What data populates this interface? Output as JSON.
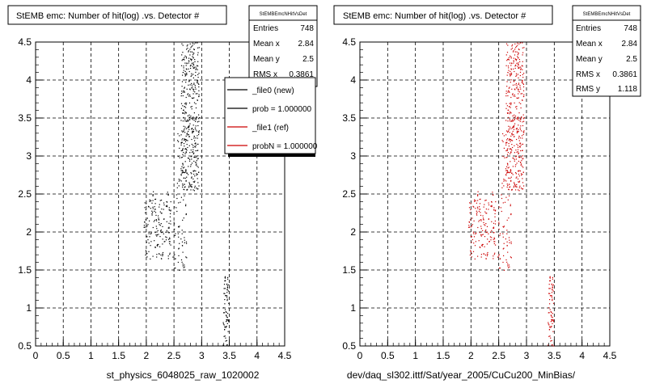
{
  "colors": {
    "background": "#ffffff",
    "frame": "#000000",
    "grid": "#000000",
    "new_series": "#000000",
    "ref_series": "#cc0000",
    "legend_shadow": "#000000"
  },
  "chart_data": [
    {
      "type": "scatter",
      "title": "StEMB emc: Number of hit(log) .vs. Detector #",
      "xlabel": "st_physics_6048025_raw_1020002",
      "xlim": [
        0,
        4.5
      ],
      "ylim": [
        0.5,
        4.5
      ],
      "x_ticks": [
        "0",
        "0.5",
        "1",
        "1.5",
        "2",
        "2.5",
        "3",
        "3.5",
        "4",
        "4.5"
      ],
      "y_ticks": [
        "0.5",
        "1",
        "1.5",
        "2",
        "2.5",
        "3",
        "3.5",
        "4",
        "4.5"
      ],
      "grid": true,
      "stats_box": {
        "title": "StEMBEmcNHitVsDet",
        "rows": [
          {
            "label": "Entries",
            "value": "748"
          },
          {
            "label": "Mean x",
            "value": "2.84"
          },
          {
            "label": "Mean y",
            "value": "2.5"
          },
          {
            "label": "RMS x",
            "value": "0.3861"
          }
        ]
      },
      "legend": {
        "placement": "top-right",
        "entries": [
          {
            "label": "_file0 (new)",
            "color": "#000000"
          },
          {
            "label": "prob = 1.000000",
            "color": "#000000"
          },
          {
            "label": "_file1 (ref)",
            "color": "#cc0000"
          },
          {
            "label": "probN = 1.000000",
            "color": "#cc0000"
          }
        ]
      },
      "series": [
        {
          "color": "#000000",
          "clusters": [
            {
              "x": [
                2.62,
                2.95
              ],
              "y": [
                2.55,
                4.5
              ],
              "n": 420
            },
            {
              "x": [
                2.55,
                2.72
              ],
              "y": [
                2.55,
                3.4
              ],
              "n": 40
            },
            {
              "x": [
                1.95,
                2.45
              ],
              "y": [
                1.65,
                2.45
              ],
              "n": 150
            },
            {
              "x": [
                2.1,
                2.42
              ],
              "y": [
                2.3,
                2.55
              ],
              "n": 20
            },
            {
              "x": [
                2.47,
                2.72
              ],
              "y": [
                1.5,
                2.5
              ],
              "n": 60
            },
            {
              "x": [
                3.38,
                3.48
              ],
              "y": [
                0.5,
                1.5
              ],
              "n": 70
            }
          ]
        }
      ]
    },
    {
      "type": "scatter",
      "title": "StEMB emc: Number of hit(log) .vs. Detector #",
      "xlabel": "dev/daq_sl302.ittf/Sat/year_2005/CuCu200_MinBias/",
      "xlim": [
        0,
        4.5
      ],
      "ylim": [
        0.5,
        4.5
      ],
      "x_ticks": [
        "0",
        "0.5",
        "1",
        "1.5",
        "2",
        "2.5",
        "3",
        "3.5",
        "4",
        "4.5"
      ],
      "y_ticks": [
        "0.5",
        "1",
        "1.5",
        "2",
        "2.5",
        "3",
        "3.5",
        "4",
        "4.5"
      ],
      "grid": true,
      "stats_box": {
        "title": "StEMBEmcNHitVsDet",
        "rows": [
          {
            "label": "Entries",
            "value": "748"
          },
          {
            "label": "Mean x",
            "value": "2.84"
          },
          {
            "label": "Mean y",
            "value": "2.5"
          },
          {
            "label": "RMS x",
            "value": "0.3861"
          },
          {
            "label": "RMS y",
            "value": "1.118"
          }
        ]
      },
      "series": [
        {
          "color": "#cc0000",
          "clusters": [
            {
              "x": [
                2.62,
                2.95
              ],
              "y": [
                2.55,
                4.5
              ],
              "n": 420
            },
            {
              "x": [
                2.55,
                2.72
              ],
              "y": [
                2.55,
                3.4
              ],
              "n": 40
            },
            {
              "x": [
                1.95,
                2.45
              ],
              "y": [
                1.65,
                2.45
              ],
              "n": 150
            },
            {
              "x": [
                2.1,
                2.42
              ],
              "y": [
                2.3,
                2.55
              ],
              "n": 20
            },
            {
              "x": [
                2.47,
                2.72
              ],
              "y": [
                1.5,
                2.5
              ],
              "n": 60
            },
            {
              "x": [
                3.38,
                3.48
              ],
              "y": [
                0.5,
                1.5
              ],
              "n": 70
            }
          ]
        }
      ]
    }
  ]
}
